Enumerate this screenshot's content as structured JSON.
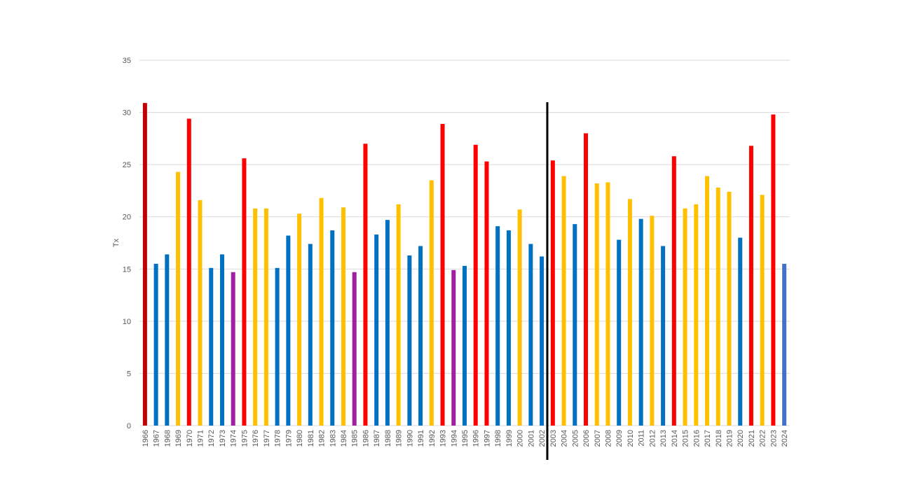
{
  "chart_data": {
    "type": "bar",
    "title": "",
    "xlabel": "",
    "ylabel": "Tx",
    "ylim": [
      0,
      35
    ],
    "yticks": [
      0,
      5,
      10,
      15,
      20,
      25,
      30,
      35
    ],
    "grid": true,
    "legend": "none",
    "divider_after": "2002",
    "colors": {
      "dark_red": "#c00000",
      "red": "#ff0000",
      "yellow": "#ffc000",
      "blue": "#0070c0",
      "purple": "#a020a0",
      "steel_blue": "#4472c4",
      "divider": "#000000"
    },
    "categories": [
      "1966",
      "1967",
      "1968",
      "1969",
      "1970",
      "1971",
      "1972",
      "1973",
      "1974",
      "1975",
      "1976",
      "1977",
      "1978",
      "1979",
      "1980",
      "1981",
      "1982",
      "1983",
      "1984",
      "1985",
      "1986",
      "1987",
      "1988",
      "1989",
      "1990",
      "1991",
      "1992",
      "1993",
      "1994",
      "1995",
      "1996",
      "1997",
      "1998",
      "1999",
      "2000",
      "2001",
      "2002",
      "2003",
      "2004",
      "2005",
      "2006",
      "2007",
      "2008",
      "2009",
      "2010",
      "2011",
      "2012",
      "2013",
      "2014",
      "2015",
      "2016",
      "2017",
      "2018",
      "2019",
      "2020",
      "2021",
      "2022",
      "2023",
      "2024"
    ],
    "values": [
      30.9,
      15.5,
      16.4,
      24.3,
      29.4,
      21.6,
      15.1,
      16.4,
      14.7,
      25.6,
      20.8,
      20.8,
      15.1,
      18.2,
      20.3,
      17.4,
      21.8,
      18.7,
      20.9,
      14.7,
      27.0,
      18.3,
      19.7,
      21.2,
      16.3,
      17.2,
      23.5,
      28.9,
      14.9,
      15.3,
      26.9,
      25.3,
      19.1,
      18.7,
      20.7,
      17.4,
      16.2,
      25.4,
      23.9,
      19.3,
      28.0,
      23.2,
      23.3,
      17.8,
      21.7,
      19.8,
      20.1,
      17.2,
      25.8,
      20.8,
      21.2,
      23.9,
      22.8,
      22.4,
      18.0,
      26.8,
      22.1,
      29.8,
      15.5
    ],
    "bar_colors": [
      "dark_red",
      "blue",
      "blue",
      "yellow",
      "red",
      "yellow",
      "blue",
      "blue",
      "purple",
      "red",
      "yellow",
      "yellow",
      "blue",
      "blue",
      "yellow",
      "blue",
      "yellow",
      "blue",
      "yellow",
      "purple",
      "red",
      "blue",
      "blue",
      "yellow",
      "blue",
      "blue",
      "yellow",
      "red",
      "purple",
      "blue",
      "red",
      "red",
      "blue",
      "blue",
      "yellow",
      "blue",
      "blue",
      "red",
      "yellow",
      "blue",
      "red",
      "yellow",
      "yellow",
      "blue",
      "yellow",
      "blue",
      "yellow",
      "blue",
      "red",
      "yellow",
      "yellow",
      "yellow",
      "yellow",
      "yellow",
      "blue",
      "red",
      "yellow",
      "red",
      "steel_blue"
    ]
  }
}
